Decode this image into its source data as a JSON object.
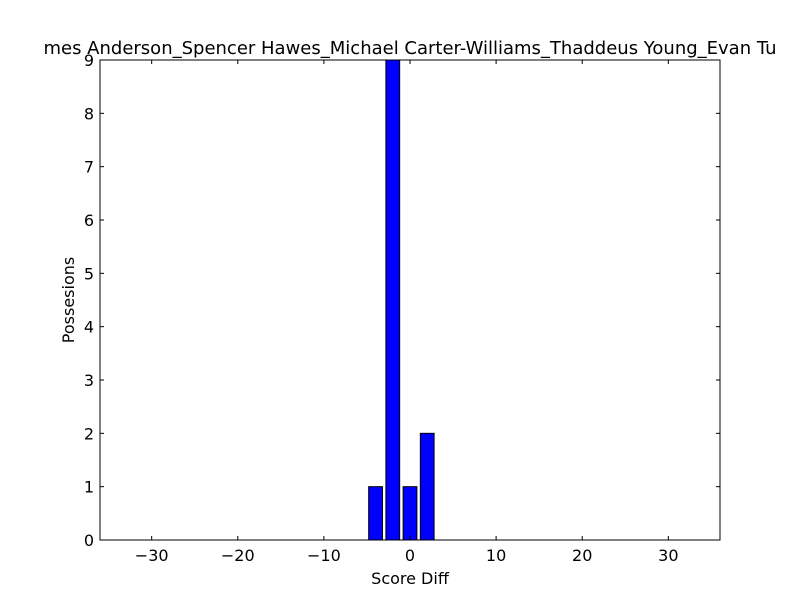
{
  "chart_data": {
    "type": "bar",
    "title": "mes Anderson_Spencer Hawes_Michael Carter-Williams_Thaddeus Young_Evan Tu",
    "xlabel": "Score Diff",
    "ylabel": "Possesions",
    "xlim": [
      -36,
      36
    ],
    "ylim": [
      0,
      9
    ],
    "bar_width": 1.6,
    "bar_color": "#0000ff",
    "edge_color": "#000000",
    "grid": false,
    "bars": [
      {
        "x": -4.8,
        "value": 1
      },
      {
        "x": -2.8,
        "value": 9
      },
      {
        "x": -0.8,
        "value": 1
      },
      {
        "x": 1.2,
        "value": 2
      }
    ],
    "x_ticks": [
      {
        "value": -30,
        "label": "−30"
      },
      {
        "value": -20,
        "label": "−20"
      },
      {
        "value": -10,
        "label": "−10"
      },
      {
        "value": 0,
        "label": "0"
      },
      {
        "value": 10,
        "label": "10"
      },
      {
        "value": 20,
        "label": "20"
      },
      {
        "value": 30,
        "label": "30"
      }
    ],
    "y_ticks": [
      {
        "value": 0,
        "label": "0"
      },
      {
        "value": 1,
        "label": "1"
      },
      {
        "value": 2,
        "label": "2"
      },
      {
        "value": 3,
        "label": "3"
      },
      {
        "value": 4,
        "label": "4"
      },
      {
        "value": 5,
        "label": "5"
      },
      {
        "value": 6,
        "label": "6"
      },
      {
        "value": 7,
        "label": "7"
      },
      {
        "value": 8,
        "label": "8"
      },
      {
        "value": 9,
        "label": "9"
      }
    ]
  }
}
